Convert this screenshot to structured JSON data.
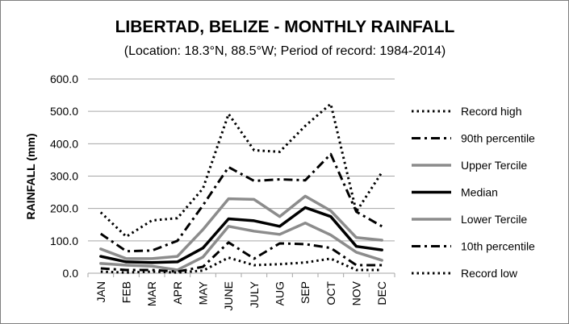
{
  "chart_data": {
    "type": "line",
    "title": "LIBERTAD, BELIZE - MONTHLY RAINFALL",
    "subtitle": "(Location: 18.3°N, 88.5°W; Period of record: 1984-2014)",
    "xlabel": "",
    "ylabel": "RAINFALL (mm)",
    "ylim": [
      0,
      600
    ],
    "yticks": [
      "0.0",
      "100.0",
      "200.0",
      "300.0",
      "400.0",
      "500.0",
      "600.0"
    ],
    "categories": [
      "JAN",
      "FEB",
      "MAR",
      "APR",
      "MAY",
      "JUNE",
      "JULY",
      "AUG",
      "SEP",
      "OCT",
      "NOV",
      "DEC"
    ],
    "grid": "horizontal",
    "legend_position": "right",
    "series": [
      {
        "name": "Record high",
        "style": "dotted",
        "color": "#000000",
        "width": 3,
        "values": [
          188,
          113,
          163,
          170,
          262,
          492,
          380,
          375,
          455,
          523,
          190,
          312
        ]
      },
      {
        "name": "90th percentile",
        "style": "dashdot",
        "color": "#000000",
        "width": 3,
        "values": [
          122,
          68,
          70,
          100,
          210,
          328,
          285,
          290,
          287,
          368,
          190,
          145
        ]
      },
      {
        "name": "Upper Tercile",
        "style": "solid",
        "color": "#8c8c8c",
        "width": 3.5,
        "values": [
          75,
          45,
          45,
          52,
          135,
          230,
          228,
          175,
          238,
          193,
          110,
          102
        ]
      },
      {
        "name": "Median",
        "style": "solid",
        "color": "#000000",
        "width": 3.5,
        "values": [
          52,
          35,
          33,
          35,
          78,
          168,
          162,
          145,
          203,
          175,
          83,
          72
        ]
      },
      {
        "name": "Lower Tercile",
        "style": "solid",
        "color": "#8c8c8c",
        "width": 3.5,
        "values": [
          30,
          25,
          22,
          10,
          50,
          145,
          130,
          120,
          155,
          118,
          65,
          40
        ]
      },
      {
        "name": "10th percentile",
        "style": "dashdot",
        "color": "#000000",
        "width": 3,
        "values": [
          15,
          10,
          10,
          5,
          20,
          95,
          45,
          92,
          90,
          78,
          25,
          25
        ]
      },
      {
        "name": "Record low",
        "style": "dotted",
        "color": "#000000",
        "width": 3,
        "values": [
          5,
          2,
          5,
          2,
          8,
          48,
          25,
          28,
          33,
          45,
          10,
          10
        ]
      }
    ]
  }
}
